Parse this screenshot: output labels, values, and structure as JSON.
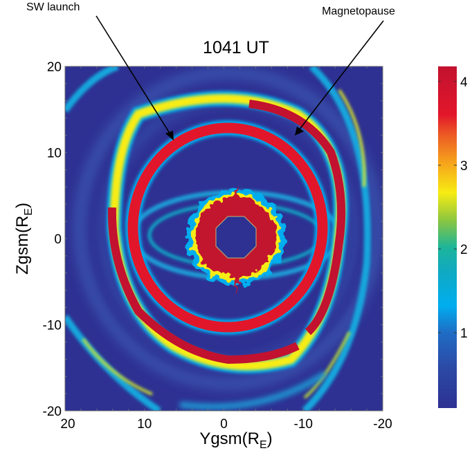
{
  "chart_data": {
    "type": "heatmap",
    "title": "1041 UT",
    "xlabel": "Ygsm(R",
    "xlabel_sub": "E",
    "xlabel_close": ")",
    "ylabel": "Zgsm(R",
    "ylabel_sub": "E",
    "ylabel_close": ")",
    "xlim": [
      20,
      -20
    ],
    "ylim": [
      -20,
      20
    ],
    "x_ticks": [
      "20",
      "10",
      "0",
      "-10",
      "-20"
    ],
    "x_tick_values": [
      20,
      10,
      0,
      -10,
      -20
    ],
    "y_ticks": [
      "20",
      "10",
      "0",
      "-10",
      "-20"
    ],
    "y_tick_values": [
      20,
      10,
      0,
      -10,
      -20
    ],
    "colorbar": {
      "range": [
        0.1,
        4.18
      ],
      "ticks": [
        "4",
        "3",
        "2",
        "1"
      ],
      "tick_values": [
        4,
        3,
        2,
        1
      ],
      "colormap": [
        "#2e3192",
        "#1f63c0",
        "#00aeef",
        "#18b7a4",
        "#a8d63a",
        "#f7ec13",
        "#f6a21b",
        "#ec4a23",
        "#e2162b",
        "#c2122f"
      ]
    },
    "features": [
      {
        "name": "SW launch ring",
        "center": [
          0.7,
          1.0
        ],
        "radius_y": 11.0,
        "radius_z": 11.5,
        "value": 4.1
      },
      {
        "name": "Magnetopause",
        "value": 4.0
      },
      {
        "name": "Inner boundary (masked)",
        "center": [
          0,
          0
        ],
        "radius": 2.3,
        "value": 0.1
      },
      {
        "name": "Plasmasphere core",
        "center": [
          0,
          0
        ],
        "radius": 4.5,
        "value": 4.1
      }
    ],
    "annotations": [
      {
        "text": "SW launch",
        "points_to": "SW launch ring"
      },
      {
        "text": "Magnetopause",
        "points_to": "Magnetopause"
      }
    ],
    "colors": {
      "background": "#2e3192",
      "ring": "#e2162b",
      "core": "#c2122f"
    }
  }
}
